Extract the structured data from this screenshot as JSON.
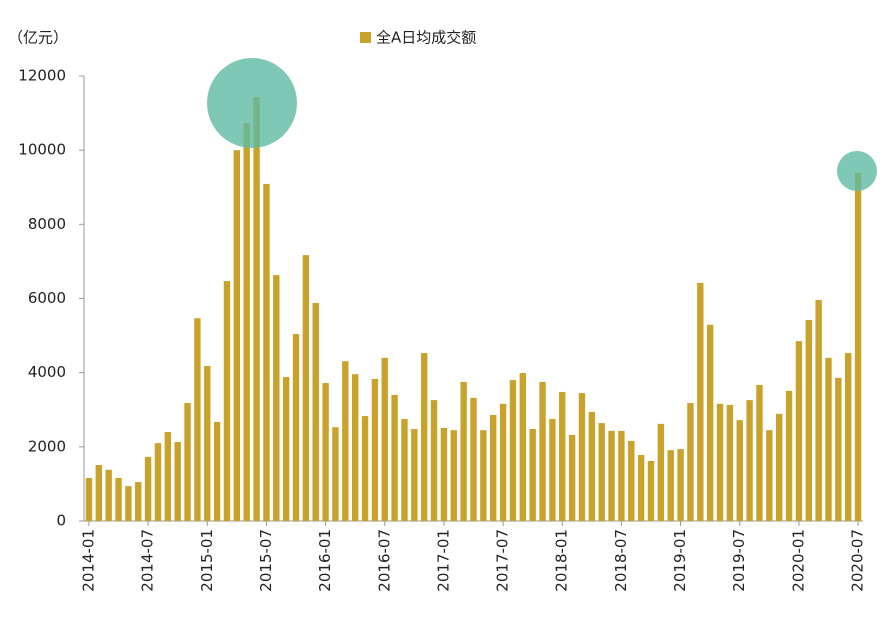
{
  "chart_data": {
    "type": "bar",
    "unit_label": "（亿元）",
    "series": [
      {
        "name": "全A日均成交额",
        "color": "#c9a22b",
        "values": [
          1160,
          1510,
          1380,
          1160,
          940,
          1050,
          1730,
          2100,
          2400,
          2130,
          3180,
          5470,
          4180,
          2670,
          6470,
          10000,
          10730,
          11430,
          9090,
          6630,
          3880,
          5040,
          7170,
          5880,
          3720,
          2530,
          4310,
          3960,
          2830,
          3830,
          4400,
          3400,
          2750,
          2480,
          4530,
          3260,
          2510,
          2450,
          3750,
          3320,
          2450,
          2860,
          3160,
          3800,
          3990,
          2480,
          3750,
          2750,
          3480,
          2320,
          3450,
          2940,
          2640,
          2430,
          2430,
          2160,
          1780,
          1620,
          2620,
          1910,
          1940,
          3180,
          6420,
          5290,
          3160,
          3130,
          2720,
          3260,
          3670,
          2450,
          2890,
          3510,
          4850,
          5420,
          5960,
          4400,
          3860,
          4530,
          9390
        ]
      }
    ],
    "categories": [
      "2014-01",
      null,
      null,
      null,
      null,
      null,
      "2014-07",
      null,
      null,
      null,
      null,
      null,
      "2015-01",
      null,
      null,
      null,
      null,
      null,
      "2015-07",
      null,
      null,
      null,
      null,
      null,
      "2016-01",
      null,
      null,
      null,
      null,
      null,
      "2016-07",
      null,
      null,
      null,
      null,
      null,
      "2017-01",
      null,
      null,
      null,
      null,
      null,
      "2017-07",
      null,
      null,
      null,
      null,
      null,
      "2018-01",
      null,
      null,
      null,
      null,
      null,
      "2018-07",
      null,
      null,
      null,
      null,
      null,
      "2019-01",
      null,
      null,
      null,
      null,
      null,
      "2019-07",
      null,
      null,
      null,
      null,
      null,
      "2020-01",
      null,
      null,
      null,
      null,
      null,
      "2020-07"
    ],
    "ylim": [
      0,
      12000
    ],
    "yticks": [
      0,
      2000,
      4000,
      6000,
      8000,
      10000,
      12000
    ]
  }
}
